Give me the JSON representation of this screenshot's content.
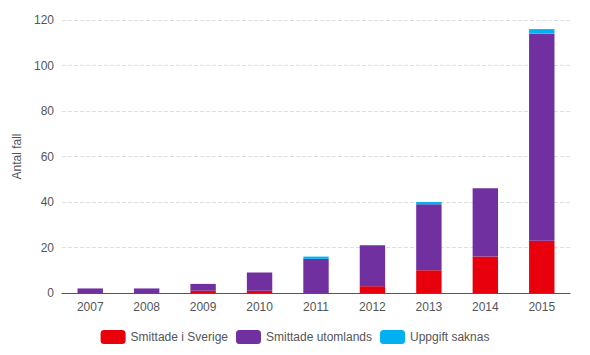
{
  "chart_data": {
    "type": "bar",
    "stacked": true,
    "categories": [
      "2007",
      "2008",
      "2009",
      "2010",
      "2011",
      "2012",
      "2013",
      "2014",
      "2015"
    ],
    "series": [
      {
        "name": "Smittade i Sverige",
        "color": "#e8000d",
        "values": [
          0,
          0,
          1,
          1,
          0,
          3,
          10,
          16,
          23
        ]
      },
      {
        "name": "Smittade utomlands",
        "color": "#7030A0",
        "values": [
          2,
          2,
          3,
          8,
          15,
          18,
          29,
          30,
          91
        ]
      },
      {
        "name": "Uppgift saknas",
        "color": "#00B0F0",
        "values": [
          0,
          0,
          0,
          0,
          1,
          0,
          1,
          0,
          2
        ]
      }
    ],
    "ylabel": "Antal fall",
    "ylim": [
      0,
      120
    ],
    "yticks": [
      0,
      20,
      40,
      60,
      80,
      100,
      120
    ],
    "grid": true,
    "legend": "bottom"
  }
}
